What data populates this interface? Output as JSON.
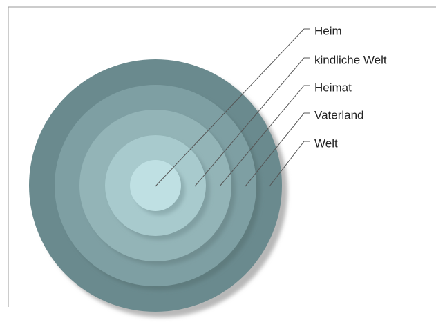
{
  "nodes": [
    {
      "label": "Heim"
    },
    {
      "label": "kindliche Welt"
    },
    {
      "label": "Heimat"
    },
    {
      "label": "Vaterland"
    },
    {
      "label": "Welt"
    }
  ]
}
